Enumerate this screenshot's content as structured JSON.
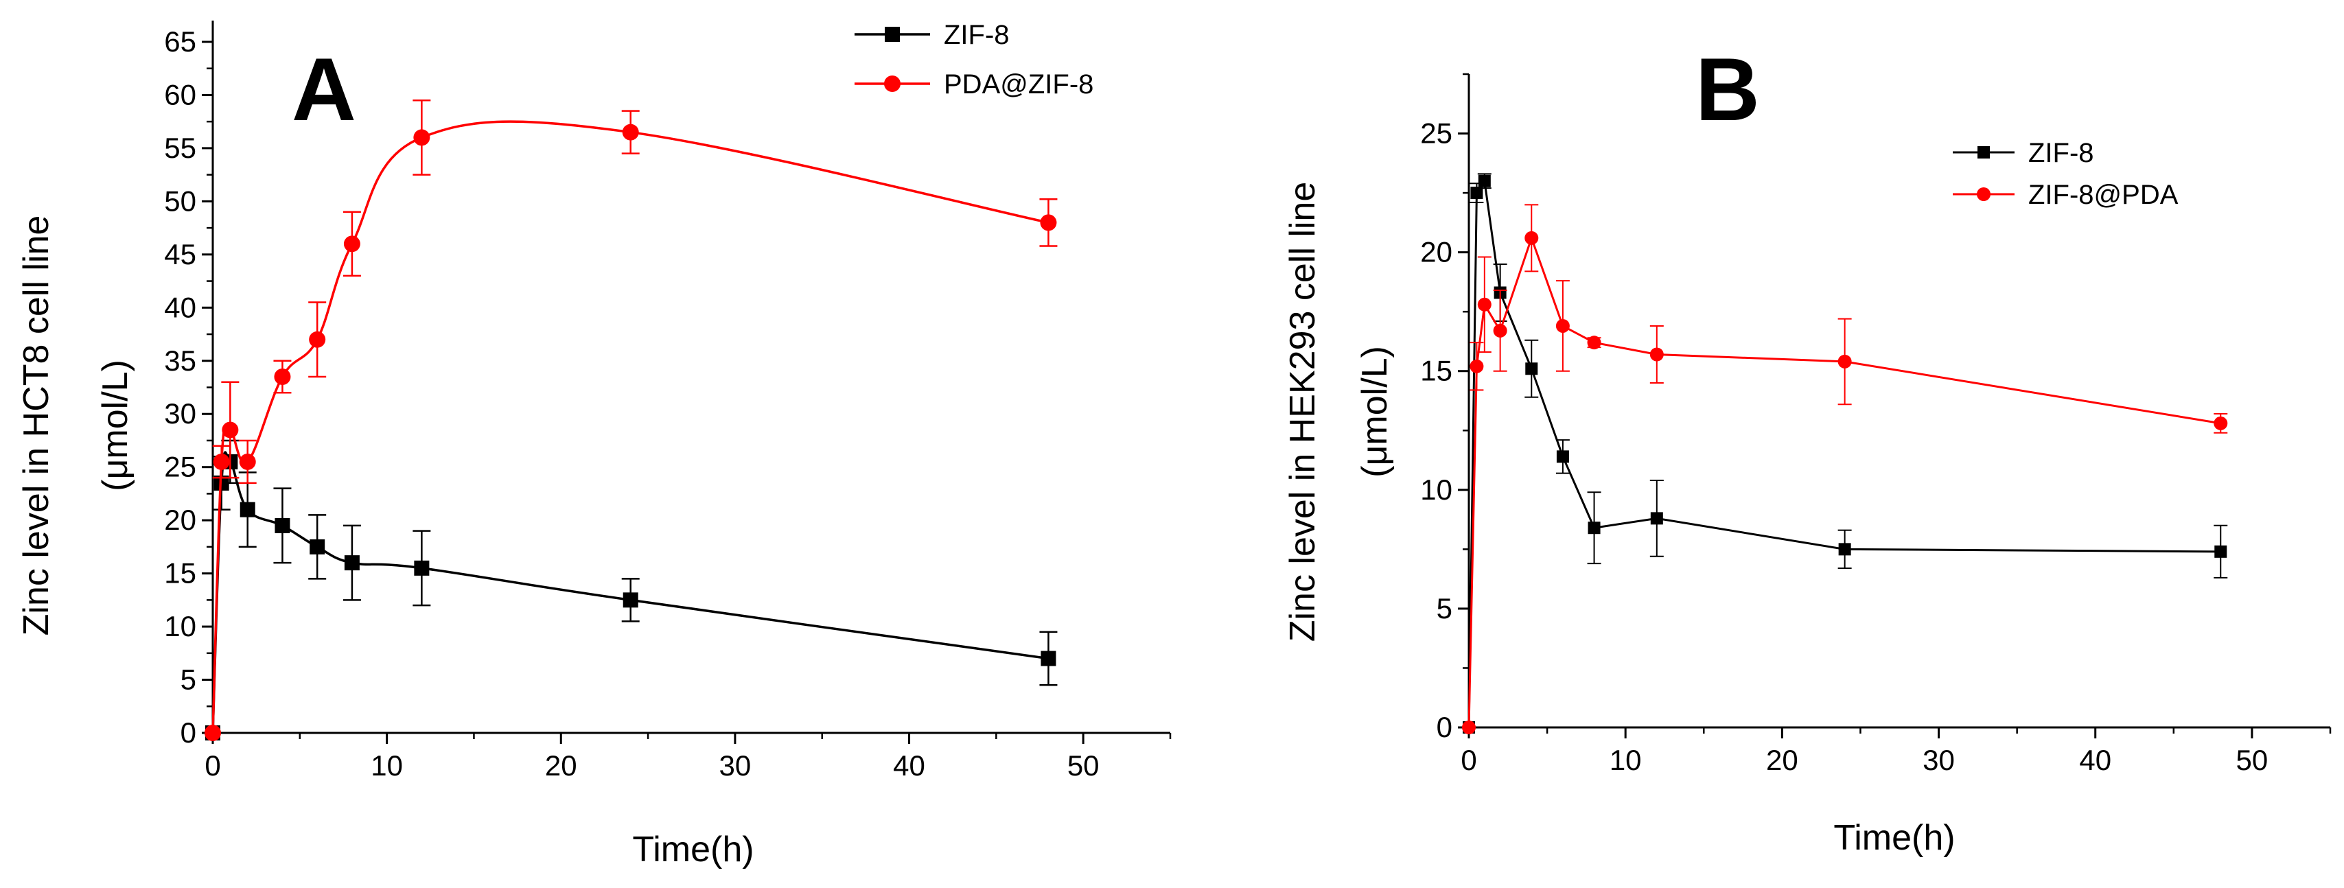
{
  "chart_data": [
    {
      "type": "line",
      "panel_label": "A",
      "xlabel": "Time(h)",
      "ylabel": "Zinc level in HCT8 cell line",
      "ylabel_units": "(μmol/L)",
      "xlim": [
        0,
        55
      ],
      "ylim": [
        0,
        67
      ],
      "xticks": [
        0,
        10,
        20,
        30,
        40,
        50
      ],
      "yticks": [
        0,
        5,
        10,
        15,
        20,
        25,
        30,
        35,
        40,
        45,
        50,
        55,
        60,
        65
      ],
      "x": [
        0,
        0.5,
        1,
        2,
        4,
        6,
        8,
        12,
        24,
        48
      ],
      "series": [
        {
          "name": "ZIF-8",
          "color": "#000000",
          "marker": "square",
          "values": [
            0,
            23.5,
            25.5,
            21,
            19.5,
            17.5,
            16,
            15.5,
            12.5,
            7
          ],
          "errors": [
            0,
            2.5,
            2,
            3.5,
            3.5,
            3,
            3.5,
            3.5,
            2,
            2.5
          ]
        },
        {
          "name": "PDA@ZIF-8",
          "color": "#ff0000",
          "marker": "circle",
          "values": [
            0,
            25.5,
            28.5,
            25.5,
            33.5,
            37,
            46,
            56,
            56.5,
            48
          ],
          "errors": [
            0,
            1.5,
            4.5,
            2,
            1.5,
            3.5,
            3,
            3.5,
            2,
            2.2
          ]
        }
      ]
    },
    {
      "type": "line",
      "panel_label": "B",
      "xlabel": "Time(h)",
      "ylabel": "Zinc  level in HEK293 cell line",
      "ylabel_units": "(μmol/L)",
      "xlim": [
        0,
        55
      ],
      "ylim": [
        0,
        27.5
      ],
      "xticks": [
        0,
        10,
        20,
        30,
        40,
        50
      ],
      "yticks": [
        0,
        5,
        10,
        15,
        20,
        25
      ],
      "x": [
        0,
        0.5,
        1,
        2,
        4,
        6,
        8,
        12,
        24,
        48
      ],
      "series": [
        {
          "name": "ZIF-8",
          "color": "#000000",
          "marker": "square",
          "values": [
            0,
            22.5,
            23,
            18.3,
            15.1,
            11.4,
            8.4,
            8.8,
            7.5,
            7.4
          ],
          "errors": [
            0,
            0.4,
            0.3,
            1.2,
            1.2,
            0.7,
            1.5,
            1.6,
            0.8,
            1.1
          ]
        },
        {
          "name": "ZIF-8@PDA",
          "color": "#ff0000",
          "marker": "circle",
          "values": [
            0,
            15.2,
            17.8,
            16.7,
            20.6,
            16.9,
            16.2,
            15.7,
            15.4,
            12.8
          ],
          "errors": [
            0,
            1,
            2,
            1.7,
            1.4,
            1.9,
            0.2,
            1.2,
            1.8,
            0.4
          ]
        }
      ]
    }
  ]
}
